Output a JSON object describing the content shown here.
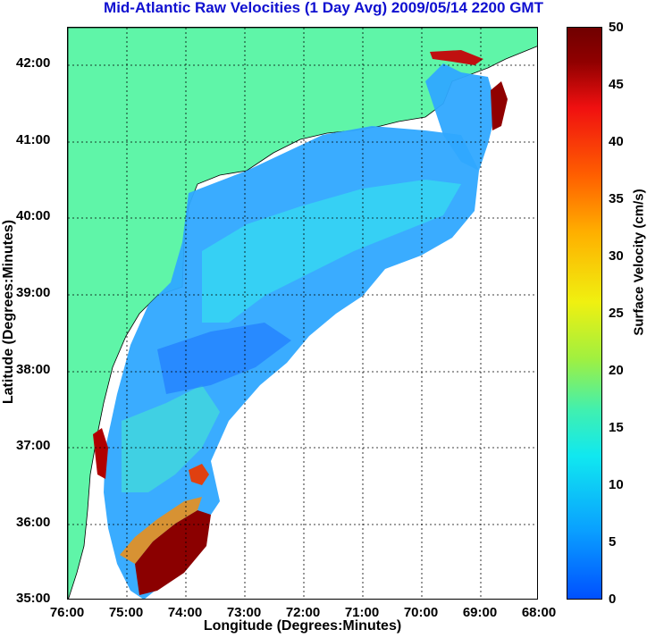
{
  "title": "Mid-Atlantic Raw Velocities (1 Day Avg) 2009/05/14 2200 GMT",
  "x_axis": {
    "label": "Longitude (Degrees:Minutes)",
    "ticks": [
      "76:00",
      "75:00",
      "74:00",
      "73:00",
      "72:00",
      "71:00",
      "70:00",
      "69:00",
      "68:00"
    ]
  },
  "y_axis": {
    "label": "Latitude (Degrees:Minutes)",
    "ticks": [
      "42:00",
      "41:00",
      "40:00",
      "39:00",
      "38:00",
      "37:00",
      "36:00",
      "35:00"
    ]
  },
  "colorbar": {
    "label": "Surface Velocity (cm/s)",
    "ticks": [
      "50",
      "45",
      "40",
      "35",
      "30",
      "25",
      "20",
      "15",
      "10",
      "5",
      "0"
    ],
    "range": [
      0,
      50
    ]
  },
  "colors": {
    "title": "#1010d0",
    "land": "#5ff5a8",
    "low_velocity": "#1f8fff",
    "mid_velocity": "#30d8ff",
    "high_velocity": "#8b0000"
  }
}
